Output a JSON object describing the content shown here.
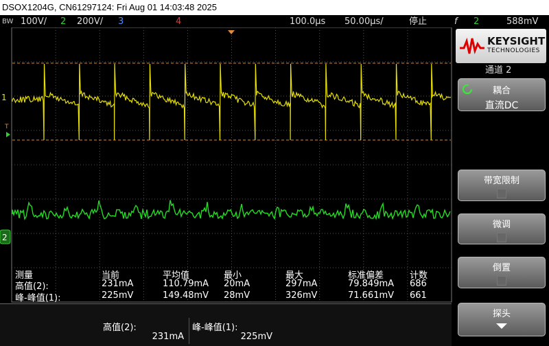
{
  "header": {
    "title": "DSOX1204G, CN61297124: Fri Aug 01 14:03:48 2025"
  },
  "status_bar": {
    "bw": "BW",
    "ch1_scale": "100V/",
    "ch2_label": "2",
    "ch2_scale": "200V/",
    "ch3_label": "3",
    "ch4_label": "4",
    "time_delay": "100.0µs",
    "time_scale": "50.00µs/",
    "run_state": "停止",
    "trigger_icon": "f",
    "trigger_channel": "2",
    "trigger_level": "588mV"
  },
  "markers": {
    "ch1": "1",
    "trigger": "T",
    "ch2": "2"
  },
  "measurements": {
    "columns": [
      "测量",
      "当前",
      "平均值",
      "最小",
      "最大",
      "标准偏差",
      "计数"
    ],
    "rows": [
      [
        "高值(2):",
        "231mA",
        "110.79mA",
        "20mA",
        "297mA",
        "79.849mA",
        "686"
      ],
      [
        "峰-峰值(1):",
        "225mV",
        "149.48mV",
        "28mV",
        "326mV",
        "71.661mV",
        "661"
      ]
    ]
  },
  "summary": [
    {
      "label": "高值(2):",
      "value": "231mA"
    },
    {
      "label": "峰-峰值(1):",
      "value": "225mV"
    }
  ],
  "side_panel": {
    "brand": "KEYSIGHT",
    "brand_sub": "TECHNOLOGIES",
    "heading": "通道 2",
    "buttons": [
      {
        "label": "耦合",
        "value": "直流DC"
      },
      {
        "label": "带宽限制"
      },
      {
        "label": "微调"
      },
      {
        "label": "倒置"
      },
      {
        "label": "探头"
      }
    ]
  }
}
